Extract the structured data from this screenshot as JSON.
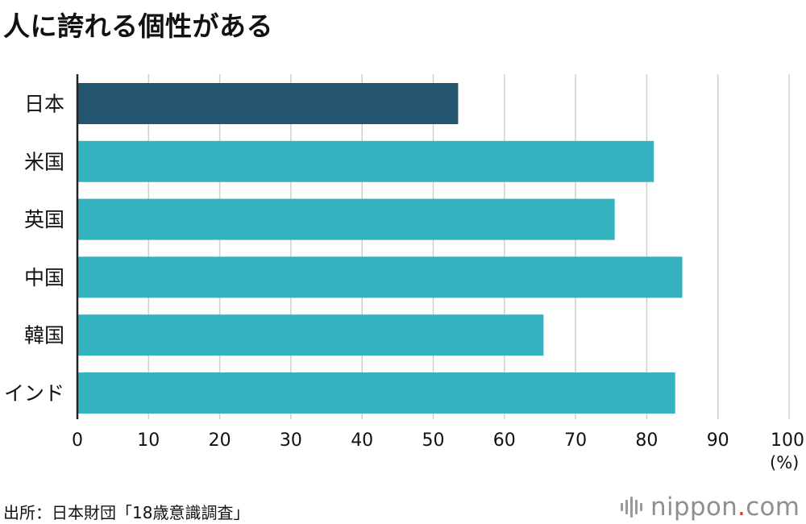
{
  "title": "人に誇れる個性がある",
  "unit_label": "(%)",
  "source": "出所：日本財団「18歳意識調査」",
  "logo": {
    "name": "nippon",
    "dot": ".",
    "suffix": "com"
  },
  "colors": {
    "highlight": "#23556f",
    "default": "#35b2bf",
    "grid": "#cfcfcf",
    "axis": "#222222"
  },
  "chart_data": {
    "type": "bar",
    "orientation": "horizontal",
    "title": "人に誇れる個性がある",
    "categories": [
      "日本",
      "米国",
      "英国",
      "中国",
      "韓国",
      "インド"
    ],
    "values": [
      53.5,
      81,
      75.5,
      85,
      65.5,
      84
    ],
    "xlim": [
      0,
      100
    ],
    "xticks": [
      0,
      10,
      20,
      30,
      40,
      50,
      60,
      70,
      80,
      90,
      100
    ],
    "xunit": "(%)",
    "grid": true,
    "highlight_index": 0
  }
}
